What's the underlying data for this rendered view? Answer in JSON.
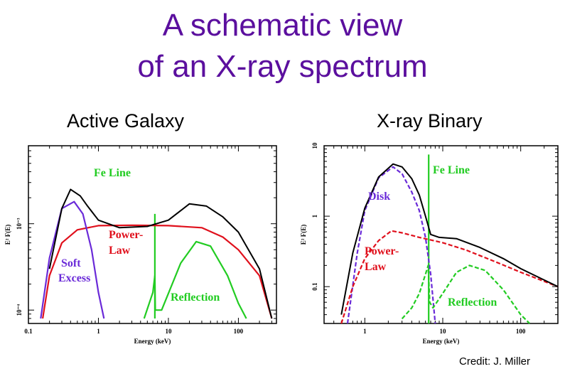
{
  "title": {
    "line1": "A schematic view",
    "line2": "of an X-ray spectrum"
  },
  "credit": "Credit: J. Miller",
  "colors": {
    "title": "#5b0f9e",
    "total": "#000000",
    "powerlaw": "#e0101c",
    "disk": "#6a2ad8",
    "reflection": "#22cc22"
  },
  "chart_data": [
    {
      "type": "line",
      "title": "Active Galaxy",
      "xlabel": "Energy (keV)",
      "ylabel": "E² F(E)",
      "xscale": "log",
      "yscale": "log",
      "xticks": [
        "0.1",
        "1",
        "10",
        "100"
      ],
      "yticks": [
        "10⁻⁴",
        "10⁻³"
      ],
      "annotations": [
        "Fe Line",
        "Power-",
        "Law",
        "Soft",
        "Excess",
        "Reflection"
      ],
      "series": [
        {
          "name": "Fe Line",
          "x": [
            6.4,
            6.4
          ],
          "y": [
            8e-05,
            0.0013
          ]
        },
        {
          "name": "Power-Law",
          "x": [
            0.16,
            0.2,
            0.3,
            0.5,
            1,
            3,
            10,
            30,
            60,
            100,
            200,
            300
          ],
          "y": [
            8e-05,
            0.00025,
            0.0006,
            0.00085,
            0.00095,
            0.00096,
            0.00095,
            0.0009,
            0.0007,
            0.0005,
            0.00025,
            8e-05
          ]
        },
        {
          "name": "Soft Excess",
          "x": [
            0.15,
            0.2,
            0.3,
            0.45,
            0.6,
            0.8,
            1.0,
            1.2
          ],
          "y": [
            8e-05,
            0.0004,
            0.0015,
            0.0018,
            0.0013,
            0.0005,
            0.00016,
            8e-05
          ]
        },
        {
          "name": "Reflection",
          "x": [
            4.5,
            6,
            6.4,
            6.5,
            8,
            15,
            25,
            40,
            70,
            100,
            130
          ],
          "y": [
            8e-05,
            0.00016,
            0.00025,
            0.0001,
            0.0001,
            0.00035,
            0.00062,
            0.00055,
            0.00025,
            0.00012,
            8e-05
          ]
        },
        {
          "name": "Total",
          "x": [
            0.2,
            0.3,
            0.4,
            0.55,
            0.7,
            1.0,
            2,
            5,
            10,
            20,
            35,
            60,
            100,
            200,
            300
          ],
          "y": [
            0.0003,
            0.0015,
            0.0025,
            0.0021,
            0.0016,
            0.0011,
            0.0009,
            0.00093,
            0.0011,
            0.0017,
            0.0016,
            0.0012,
            0.0008,
            0.0003,
            8e-05
          ]
        }
      ],
      "xlim": [
        0.1,
        350
      ],
      "ylim": [
        7e-05,
        0.008
      ]
    },
    {
      "type": "line",
      "title": "X-ray Binary",
      "xlabel": "Energy (keV)",
      "ylabel": "E² F(E)",
      "xscale": "log",
      "yscale": "log",
      "xticks": [
        "1",
        "10",
        "100"
      ],
      "yticks": [
        "0.1",
        "1",
        "10"
      ],
      "annotations": [
        "Disk",
        "Fe Line",
        "Power-",
        "Law",
        "Reflection"
      ],
      "series": [
        {
          "name": "Fe Line",
          "x": [
            6.6,
            6.6
          ],
          "y": [
            0.03,
            7.5
          ]
        },
        {
          "name": "Disk",
          "x": [
            0.6,
            0.8,
            1.0,
            1.5,
            2.3,
            3,
            4,
            5,
            6,
            7,
            8
          ],
          "y": [
            0.03,
            0.3,
            1.2,
            3.5,
            5.0,
            4.0,
            2.2,
            1.2,
            0.5,
            0.15,
            0.03
          ]
        },
        {
          "name": "Power-Law",
          "x": [
            0.5,
            0.7,
            1.0,
            1.5,
            2.2,
            3,
            5,
            10,
            20,
            50,
            100,
            300
          ],
          "y": [
            0.03,
            0.1,
            0.25,
            0.45,
            0.62,
            0.58,
            0.5,
            0.42,
            0.33,
            0.22,
            0.16,
            0.1
          ]
        },
        {
          "name": "Reflection",
          "x": [
            3,
            4,
            5,
            6,
            6.5,
            6.8,
            7.5,
            10,
            15,
            22,
            35,
            60,
            100,
            130
          ],
          "y": [
            0.035,
            0.05,
            0.08,
            0.15,
            0.2,
            0.06,
            0.05,
            0.08,
            0.16,
            0.2,
            0.17,
            0.09,
            0.04,
            0.03
          ]
        },
        {
          "name": "Total",
          "x": [
            0.5,
            0.7,
            1.0,
            1.5,
            2.3,
            3,
            4,
            5,
            6,
            7,
            9,
            15,
            30,
            60,
            100,
            300
          ],
          "y": [
            0.04,
            0.3,
            1.3,
            3.6,
            5.5,
            5.0,
            3.4,
            2.0,
            1.0,
            0.55,
            0.5,
            0.48,
            0.36,
            0.25,
            0.18,
            0.1
          ]
        }
      ],
      "xlim": [
        0.3,
        300
      ],
      "ylim": [
        0.03,
        10
      ]
    }
  ]
}
